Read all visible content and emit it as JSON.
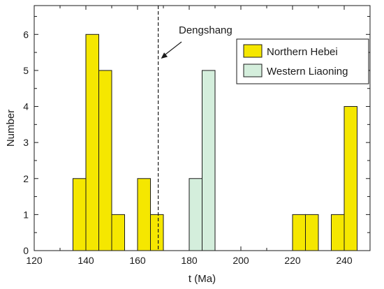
{
  "chart_data": {
    "type": "bar",
    "xlabel": "t (Ma)",
    "ylabel": "Number",
    "xlim": [
      120,
      250
    ],
    "ylim": [
      0,
      6.8
    ],
    "bin_width": 5,
    "xticks": [
      120,
      140,
      160,
      180,
      200,
      220,
      240
    ],
    "yticks": [
      0,
      1,
      2,
      3,
      4,
      5,
      6
    ],
    "grid": false,
    "legend_position": "top-right",
    "series": [
      {
        "name": "Northern Hebei",
        "color": "#f5e700",
        "bins": [
          {
            "x0": 135,
            "x1": 140,
            "value": 2
          },
          {
            "x0": 140,
            "x1": 145,
            "value": 6
          },
          {
            "x0": 145,
            "x1": 150,
            "value": 5
          },
          {
            "x0": 150,
            "x1": 155,
            "value": 1
          },
          {
            "x0": 160,
            "x1": 165,
            "value": 2
          },
          {
            "x0": 165,
            "x1": 170,
            "value": 1
          },
          {
            "x0": 220,
            "x1": 225,
            "value": 1
          },
          {
            "x0": 225,
            "x1": 230,
            "value": 1
          },
          {
            "x0": 235,
            "x1": 240,
            "value": 1
          },
          {
            "x0": 240,
            "x1": 245,
            "value": 4
          }
        ]
      },
      {
        "name": "Western Liaoning",
        "color": "#d4eedc",
        "bins": [
          {
            "x0": 180,
            "x1": 185,
            "value": 2
          },
          {
            "x0": 185,
            "x1": 190,
            "value": 5
          }
        ]
      }
    ],
    "reference_line": {
      "x": 168,
      "label": "Dengshang",
      "style": "dashed"
    }
  }
}
